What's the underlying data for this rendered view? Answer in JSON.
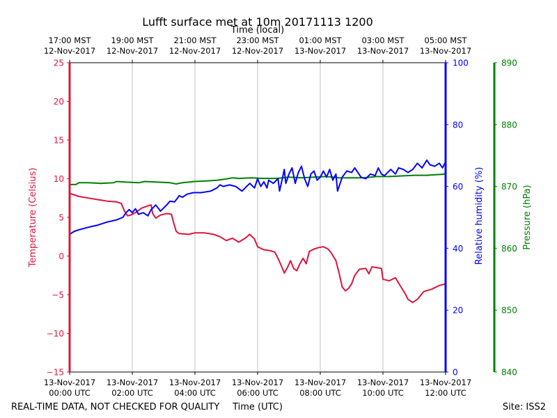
{
  "chart_data": {
    "type": "line",
    "title": "Lufft surface met at 10m 20171113 1200",
    "top_axis_label": "Time (local)",
    "xlabel": "Time (UTC)",
    "footer_left": "REAL-TIME DATA, NOT CHECKED FOR QUALITY",
    "footer_right": "Site: ISS2",
    "x_range_hours": [
      0,
      12
    ],
    "bottom_ticks": [
      {
        "hour": 0,
        "line1": "13-Nov-2017",
        "line2": "00:00 UTC"
      },
      {
        "hour": 2,
        "line1": "13-Nov-2017",
        "line2": "02:00 UTC"
      },
      {
        "hour": 4,
        "line1": "13-Nov-2017",
        "line2": "04:00 UTC"
      },
      {
        "hour": 6,
        "line1": "13-Nov-2017",
        "line2": "06:00 UTC"
      },
      {
        "hour": 8,
        "line1": "13-Nov-2017",
        "line2": "08:00 UTC"
      },
      {
        "hour": 10,
        "line1": "13-Nov-2017",
        "line2": "10:00 UTC"
      },
      {
        "hour": 12,
        "line1": "13-Nov-2017",
        "line2": "12:00 UTC"
      }
    ],
    "top_ticks": [
      {
        "hour": 0,
        "line1": "17:00 MST",
        "line2": "12-Nov-2017"
      },
      {
        "hour": 2,
        "line1": "19:00 MST",
        "line2": "12-Nov-2017"
      },
      {
        "hour": 4,
        "line1": "21:00 MST",
        "line2": "12-Nov-2017"
      },
      {
        "hour": 6,
        "line1": "23:00 MST",
        "line2": "12-Nov-2017"
      },
      {
        "hour": 8,
        "line1": "01:00 MST",
        "line2": "13-Nov-2017"
      },
      {
        "hour": 10,
        "line1": "03:00 MST",
        "line2": "13-Nov-2017"
      },
      {
        "hour": 12,
        "line1": "05:00 MST",
        "line2": "13-Nov-2017"
      }
    ],
    "series": [
      {
        "name": "Temperature",
        "axis_label": "Temperature (Celsius)",
        "color": "#dc143c",
        "ylim": [
          -15,
          25
        ],
        "ticks": [
          25,
          20,
          15,
          10,
          5,
          0,
          -5,
          -10,
          -15
        ],
        "tick_labels": [
          "25",
          "20",
          "15",
          "10",
          "5",
          "0",
          "−5",
          "−10",
          "−15"
        ],
        "points": [
          [
            0,
            8.1
          ],
          [
            0.3,
            7.7
          ],
          [
            0.6,
            7.5
          ],
          [
            0.9,
            7.3
          ],
          [
            1.2,
            7.1
          ],
          [
            1.5,
            7.0
          ],
          [
            1.65,
            6.8
          ],
          [
            1.75,
            5.8
          ],
          [
            1.85,
            5.2
          ],
          [
            1.95,
            5.3
          ],
          [
            2.1,
            5.6
          ],
          [
            2.3,
            6.2
          ],
          [
            2.5,
            6.5
          ],
          [
            2.6,
            6.6
          ],
          [
            2.65,
            5.5
          ],
          [
            2.75,
            4.9
          ],
          [
            2.9,
            5.3
          ],
          [
            3.1,
            5.5
          ],
          [
            3.25,
            5.4
          ],
          [
            3.3,
            4.6
          ],
          [
            3.4,
            3.2
          ],
          [
            3.5,
            2.9
          ],
          [
            3.8,
            2.8
          ],
          [
            4.0,
            3.0
          ],
          [
            4.3,
            3.0
          ],
          [
            4.6,
            2.8
          ],
          [
            4.8,
            2.5
          ],
          [
            5.0,
            2.0
          ],
          [
            5.2,
            2.3
          ],
          [
            5.4,
            1.8
          ],
          [
            5.6,
            2.3
          ],
          [
            5.75,
            2.8
          ],
          [
            5.9,
            2.2
          ],
          [
            6.0,
            1.2
          ],
          [
            6.2,
            0.8
          ],
          [
            6.4,
            0.7
          ],
          [
            6.55,
            0.5
          ],
          [
            6.65,
            -0.3
          ],
          [
            6.75,
            -1.2
          ],
          [
            6.85,
            -2.2
          ],
          [
            6.95,
            -1.5
          ],
          [
            7.05,
            -0.6
          ],
          [
            7.15,
            -1.6
          ],
          [
            7.25,
            -1.9
          ],
          [
            7.35,
            -1.0
          ],
          [
            7.45,
            -0.3
          ],
          [
            7.55,
            -1.0
          ],
          [
            7.65,
            0.6
          ],
          [
            7.8,
            0.9
          ],
          [
            7.95,
            1.1
          ],
          [
            8.1,
            1.2
          ],
          [
            8.25,
            0.9
          ],
          [
            8.35,
            0.4
          ],
          [
            8.5,
            -0.6
          ],
          [
            8.6,
            -2.2
          ],
          [
            8.7,
            -4.0
          ],
          [
            8.8,
            -4.5
          ],
          [
            8.9,
            -4.2
          ],
          [
            9.0,
            -3.6
          ],
          [
            9.1,
            -2.5
          ],
          [
            9.25,
            -1.7
          ],
          [
            9.45,
            -1.6
          ],
          [
            9.55,
            -2.3
          ],
          [
            9.65,
            -1.4
          ],
          [
            9.95,
            -1.6
          ],
          [
            10.0,
            -3.0
          ],
          [
            10.2,
            -3.2
          ],
          [
            10.4,
            -2.8
          ],
          [
            10.5,
            -3.5
          ],
          [
            10.7,
            -4.8
          ],
          [
            10.8,
            -5.6
          ],
          [
            10.95,
            -6.0
          ],
          [
            11.1,
            -5.6
          ],
          [
            11.3,
            -4.6
          ],
          [
            11.55,
            -4.3
          ],
          [
            11.8,
            -3.8
          ],
          [
            12.0,
            -3.6
          ]
        ]
      },
      {
        "name": "Relative humidity",
        "axis_label": "Relative humidity (%)",
        "color": "#0000ff",
        "ylim": [
          0,
          100
        ],
        "ticks": [
          100,
          80,
          60,
          40,
          20,
          0
        ],
        "tick_labels": [
          "100",
          "80",
          "60",
          "40",
          "20",
          "0"
        ],
        "points": [
          [
            0,
            44.5
          ],
          [
            0.15,
            45.5
          ],
          [
            0.3,
            46.0
          ],
          [
            0.6,
            46.8
          ],
          [
            0.9,
            47.5
          ],
          [
            1.2,
            48.5
          ],
          [
            1.5,
            49.2
          ],
          [
            1.7,
            50.0
          ],
          [
            1.8,
            51.5
          ],
          [
            1.9,
            52.5
          ],
          [
            2.0,
            51.5
          ],
          [
            2.1,
            52.8
          ],
          [
            2.2,
            51.0
          ],
          [
            2.35,
            51.5
          ],
          [
            2.5,
            50.5
          ],
          [
            2.6,
            52.5
          ],
          [
            2.75,
            54.0
          ],
          [
            2.9,
            52.0
          ],
          [
            3.1,
            54.0
          ],
          [
            3.2,
            55.2
          ],
          [
            3.35,
            55.0
          ],
          [
            3.5,
            57.0
          ],
          [
            3.6,
            56.5
          ],
          [
            3.75,
            57.5
          ],
          [
            3.95,
            58.0
          ],
          [
            4.2,
            58.0
          ],
          [
            4.5,
            58.5
          ],
          [
            4.7,
            59.5
          ],
          [
            4.8,
            60.5
          ],
          [
            4.9,
            60.0
          ],
          [
            5.1,
            60.5
          ],
          [
            5.3,
            60.0
          ],
          [
            5.5,
            58.5
          ],
          [
            5.6,
            59.5
          ],
          [
            5.75,
            61.0
          ],
          [
            5.9,
            59.5
          ],
          [
            6.0,
            62.5
          ],
          [
            6.1,
            60.0
          ],
          [
            6.2,
            61.5
          ],
          [
            6.3,
            59.5
          ],
          [
            6.35,
            62.0
          ],
          [
            6.5,
            61.0
          ],
          [
            6.65,
            62.5
          ],
          [
            6.7,
            58.5
          ],
          [
            6.8,
            63.0
          ],
          [
            6.85,
            65.5
          ],
          [
            6.9,
            61.0
          ],
          [
            7.0,
            64.0
          ],
          [
            7.1,
            66.0
          ],
          [
            7.2,
            61.0
          ],
          [
            7.3,
            64.5
          ],
          [
            7.4,
            66.5
          ],
          [
            7.5,
            62.5
          ],
          [
            7.6,
            60.0
          ],
          [
            7.7,
            64.0
          ],
          [
            7.8,
            65.0
          ],
          [
            7.9,
            62.0
          ],
          [
            8.0,
            63.0
          ],
          [
            8.1,
            65.0
          ],
          [
            8.2,
            63.0
          ],
          [
            8.3,
            65.5
          ],
          [
            8.4,
            62.0
          ],
          [
            8.5,
            64.0
          ],
          [
            8.55,
            58.5
          ],
          [
            8.7,
            63.0
          ],
          [
            8.85,
            65.0
          ],
          [
            9.0,
            64.5
          ],
          [
            9.1,
            66.0
          ],
          [
            9.2,
            64.5
          ],
          [
            9.3,
            63.0
          ],
          [
            9.45,
            62.5
          ],
          [
            9.6,
            64.0
          ],
          [
            9.75,
            63.5
          ],
          [
            9.85,
            66.0
          ],
          [
            9.95,
            64.0
          ],
          [
            10.05,
            63.5
          ],
          [
            10.25,
            65.5
          ],
          [
            10.4,
            64.0
          ],
          [
            10.5,
            66.0
          ],
          [
            10.65,
            65.5
          ],
          [
            10.8,
            64.5
          ],
          [
            10.95,
            65.5
          ],
          [
            11.1,
            67.5
          ],
          [
            11.25,
            66.0
          ],
          [
            11.4,
            68.5
          ],
          [
            11.5,
            67.0
          ],
          [
            11.65,
            66.5
          ],
          [
            11.8,
            67.5
          ],
          [
            11.9,
            66.0
          ],
          [
            12.0,
            68.0
          ]
        ]
      },
      {
        "name": "Pressure",
        "axis_label": "Pressure (hPa)",
        "color": "#008000",
        "ylim": [
          840,
          890
        ],
        "ticks": [
          890,
          880,
          870,
          860,
          850,
          840
        ],
        "tick_labels": [
          "890",
          "880",
          "870",
          "860",
          "850",
          "840"
        ],
        "points": [
          [
            0,
            870.3
          ],
          [
            0.2,
            870.3
          ],
          [
            0.3,
            870.6
          ],
          [
            0.6,
            870.6
          ],
          [
            1.0,
            870.5
          ],
          [
            1.4,
            870.6
          ],
          [
            1.5,
            870.8
          ],
          [
            1.8,
            870.7
          ],
          [
            2.2,
            870.6
          ],
          [
            2.4,
            870.8
          ],
          [
            2.8,
            870.7
          ],
          [
            3.2,
            870.6
          ],
          [
            3.4,
            870.4
          ],
          [
            3.6,
            870.6
          ],
          [
            4.0,
            870.8
          ],
          [
            4.4,
            870.9
          ],
          [
            4.7,
            871.0
          ],
          [
            5.0,
            871.2
          ],
          [
            5.2,
            871.4
          ],
          [
            5.4,
            871.3
          ],
          [
            5.8,
            871.4
          ],
          [
            6.2,
            871.3
          ],
          [
            6.6,
            871.3
          ],
          [
            7.0,
            871.5
          ],
          [
            7.4,
            871.4
          ],
          [
            7.8,
            871.5
          ],
          [
            8.2,
            871.6
          ],
          [
            8.6,
            871.4
          ],
          [
            9.0,
            871.4
          ],
          [
            9.4,
            871.4
          ],
          [
            9.8,
            871.6
          ],
          [
            10.2,
            871.6
          ],
          [
            10.6,
            871.7
          ],
          [
            11.0,
            871.8
          ],
          [
            11.4,
            871.8
          ],
          [
            11.7,
            871.9
          ],
          [
            12.0,
            872.0
          ]
        ]
      }
    ]
  }
}
